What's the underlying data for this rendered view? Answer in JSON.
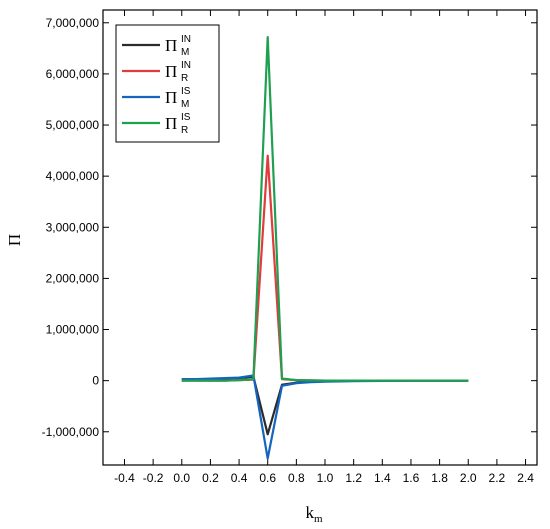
{
  "chart_data": {
    "type": "line",
    "xlabel": "k",
    "xlabel_sub": "m",
    "ylabel": "Π",
    "xlim": [
      -0.55,
      2.48
    ],
    "ylim": [
      -1650000,
      7250000
    ],
    "xticks": [
      -0.4,
      -0.2,
      0.0,
      0.2,
      0.4,
      0.6,
      0.8,
      1.0,
      1.2,
      1.4,
      1.6,
      1.8,
      2.0,
      2.2,
      2.4
    ],
    "xtick_labels": [
      "-0.4",
      "-0.2",
      "0.0",
      "0.2",
      "0.4",
      "0.6",
      "0.8",
      "1.0",
      "1.2",
      "1.4",
      "1.6",
      "1.8",
      "2.0",
      "2.2",
      "2.4"
    ],
    "yticks": [
      -1000000,
      0,
      1000000,
      2000000,
      3000000,
      4000000,
      5000000,
      6000000,
      7000000
    ],
    "ytick_labels": [
      "-1,000,000",
      "0",
      "1,000,000",
      "2,000,000",
      "3,000,000",
      "4,000,000",
      "5,000,000",
      "6,000,000",
      "7,000,000"
    ],
    "grid": false,
    "legend_position": "top-left",
    "series": [
      {
        "name": "Π_M^IN",
        "base": "Π",
        "sup": "IN",
        "sub": "M",
        "color": "#2b2b2b",
        "x": [
          0.0,
          0.1,
          0.2,
          0.3,
          0.4,
          0.5,
          0.6,
          0.7,
          0.8,
          0.9,
          1.0,
          1.2,
          1.4,
          1.6,
          1.8,
          2.0
        ],
        "y": [
          30000,
          30000,
          30000,
          40000,
          50000,
          80000,
          -1050000,
          -80000,
          -40000,
          -20000,
          -10000,
          -5000,
          -5000,
          0,
          0,
          0
        ]
      },
      {
        "name": "Π_R^IN",
        "base": "Π",
        "sup": "IN",
        "sub": "R",
        "color": "#e03c3c",
        "x": [
          0.0,
          0.1,
          0.2,
          0.3,
          0.4,
          0.5,
          0.6,
          0.7,
          0.8,
          0.9,
          1.0,
          1.2,
          1.4,
          1.6,
          1.8,
          2.0
        ],
        "y": [
          0,
          0,
          0,
          0,
          10000,
          20000,
          4400000,
          30000,
          10000,
          5000,
          0,
          0,
          0,
          0,
          0,
          0
        ]
      },
      {
        "name": "Π_M^IS",
        "base": "Π",
        "sup": "IS",
        "sub": "M",
        "color": "#1565c0",
        "x": [
          0.0,
          0.1,
          0.2,
          0.3,
          0.4,
          0.5,
          0.6,
          0.7,
          0.8,
          0.9,
          1.0,
          1.2,
          1.4,
          1.6,
          1.8,
          2.0
        ],
        "y": [
          30000,
          30000,
          40000,
          50000,
          60000,
          100000,
          -1520000,
          -100000,
          -50000,
          -30000,
          -20000,
          -10000,
          -5000,
          0,
          0,
          0
        ]
      },
      {
        "name": "Π_R^IS",
        "base": "Π",
        "sup": "IS",
        "sub": "R",
        "color": "#1fa050",
        "x": [
          0.0,
          0.1,
          0.2,
          0.3,
          0.4,
          0.5,
          0.6,
          0.7,
          0.8,
          0.9,
          1.0,
          1.2,
          1.4,
          1.6,
          1.8,
          2.0
        ],
        "y": [
          0,
          0,
          0,
          0,
          10000,
          30000,
          6720000,
          40000,
          10000,
          5000,
          0,
          0,
          0,
          0,
          0,
          0
        ]
      }
    ]
  }
}
